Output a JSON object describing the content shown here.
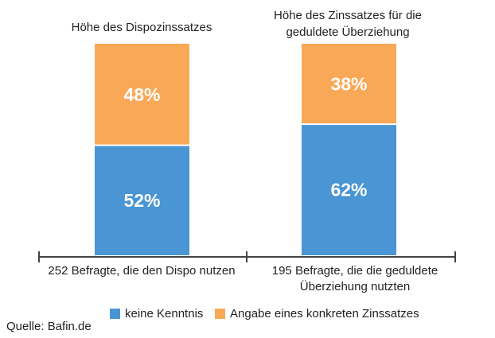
{
  "chart_data": {
    "type": "bar",
    "stacked": true,
    "categories": [
      "252 Befragte, die den Dispo nutzen",
      "195 Befragte, die die geduldete Überziehung nutzten"
    ],
    "category_label_lines": [
      [
        "252 Befragte, die den Dispo nutzen"
      ],
      [
        "195 Befragte, die die geduldete",
        "Überziehung nutzten"
      ]
    ],
    "bar_titles": [
      [
        "Höhe des Dispozinssatzes"
      ],
      [
        "Höhe des Zinssatzes für die",
        "geduldete Überziehung"
      ]
    ],
    "series": [
      {
        "name": "keine Kenntnis",
        "values": [
          52,
          62
        ],
        "labels": [
          "52%",
          "62%"
        ],
        "color": "#4a95d3"
      },
      {
        "name": "Angabe eines konkreten Zinssatzes",
        "values": [
          48,
          38
        ],
        "labels": [
          "48%",
          "38%"
        ],
        "color": "#f9a857"
      }
    ],
    "ylim": [
      0,
      100
    ],
    "grid": false,
    "legend_position": "bottom"
  },
  "source": "Quelle: Bafin.de"
}
